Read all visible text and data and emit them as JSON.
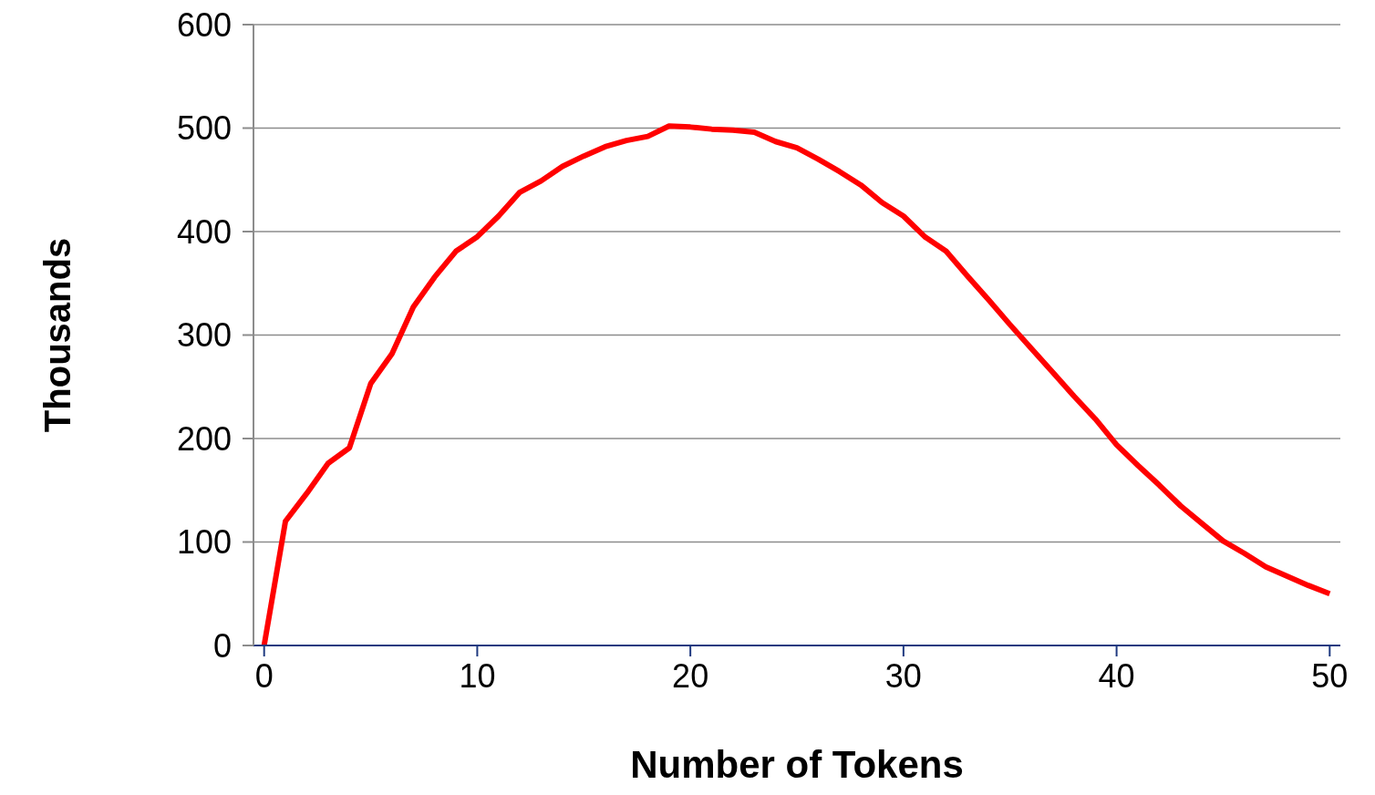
{
  "chart_data": {
    "type": "line",
    "xlabel": "Number of Tokens",
    "ylabel": "Thousands",
    "x": [
      0,
      1,
      2,
      3,
      4,
      5,
      6,
      7,
      8,
      9,
      10,
      11,
      12,
      13,
      14,
      15,
      16,
      17,
      18,
      19,
      20,
      21,
      22,
      23,
      24,
      25,
      26,
      27,
      28,
      29,
      30,
      31,
      32,
      33,
      34,
      35,
      36,
      37,
      38,
      39,
      40,
      41,
      42,
      43,
      44,
      45,
      46,
      47,
      48,
      49,
      50
    ],
    "series": [
      {
        "color": "#ff0000",
        "values": [
          0,
          120,
          147,
          176,
          191,
          253,
          282,
          327,
          356,
          381,
          395,
          415,
          438,
          449,
          463,
          473,
          482,
          488,
          492,
          502,
          501,
          499,
          498,
          496,
          487,
          481,
          470,
          458,
          445,
          428,
          415,
          395,
          381,
          357,
          334,
          310,
          287,
          264,
          241,
          219,
          194,
          174,
          155,
          135,
          118,
          101,
          89,
          76,
          67,
          58,
          50
        ]
      }
    ],
    "xlim": [
      -0.5,
      50.5
    ],
    "xticks": [
      0,
      10,
      20,
      30,
      40,
      50
    ],
    "ylim": [
      0,
      600
    ],
    "yticks": [
      0,
      100,
      200,
      300,
      400,
      500,
      600
    ],
    "grid": "y",
    "legend": false,
    "marker": "none",
    "line_style": "solid"
  }
}
